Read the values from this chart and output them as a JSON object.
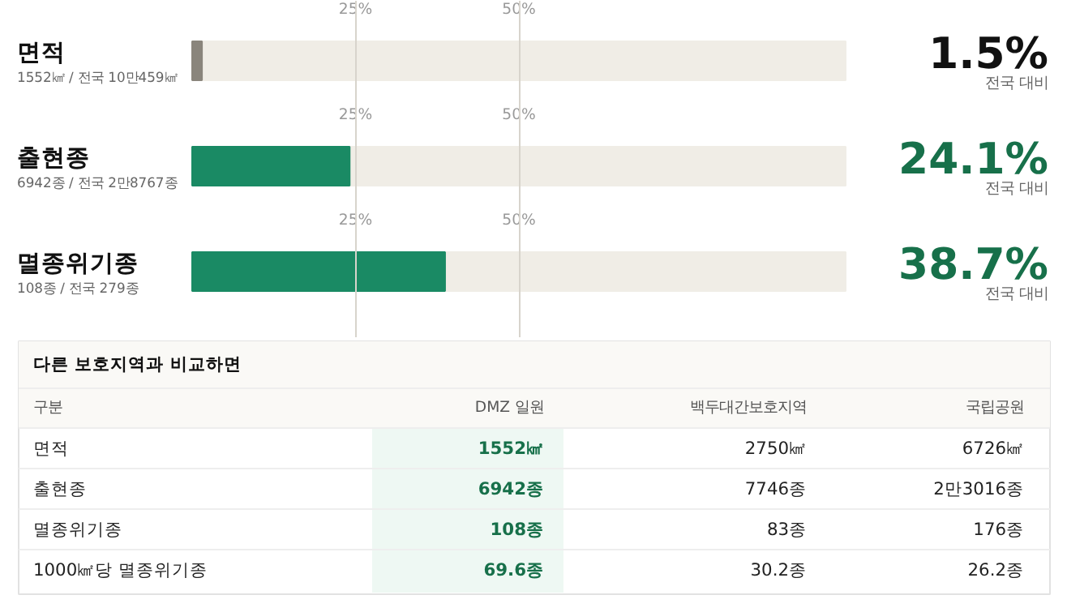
{
  "chart_data": [
    {
      "type": "bar",
      "orientation": "horizontal",
      "categories": [
        "면적",
        "출현종",
        "멸종위기종"
      ],
      "values": [
        1.5,
        24.1,
        38.7
      ],
      "colors": [
        "#8a857c",
        "#1a8a64",
        "#1a8a64"
      ],
      "value_labels": [
        "1.5%",
        "24.1%",
        "38.7%"
      ],
      "xlim": [
        0,
        100
      ],
      "xticks": [
        {
          "value": 25,
          "label": "25%"
        },
        {
          "value": 50,
          "label": "50%"
        }
      ],
      "grid": "x",
      "annotations": [
        "1552㎢ / 전국 10만459㎢",
        "전국 대비",
        "6942종 / 전국 2만8767종",
        "전국 대비",
        "108종 / 전국 279종",
        "전국 대비"
      ]
    },
    {
      "type": "other",
      "title": "다른 보호지역과 비교하면",
      "ylabel": "구분",
      "categories": [
        "DMZ 일원",
        "백두대간보호지역",
        "국립공원"
      ],
      "y_categories": [
        "면적",
        "출현종",
        "멸종위기종",
        "1000㎢당 멸종위기종"
      ],
      "cell_labels": [
        [
          "1552㎢",
          "2750㎢",
          "6726㎢"
        ],
        [
          "6942종",
          "7746종",
          "2만3016종"
        ],
        [
          "108종",
          "83종",
          "176종"
        ],
        [
          "69.6종",
          "30.2종",
          "26.2종"
        ]
      ]
    }
  ]
}
